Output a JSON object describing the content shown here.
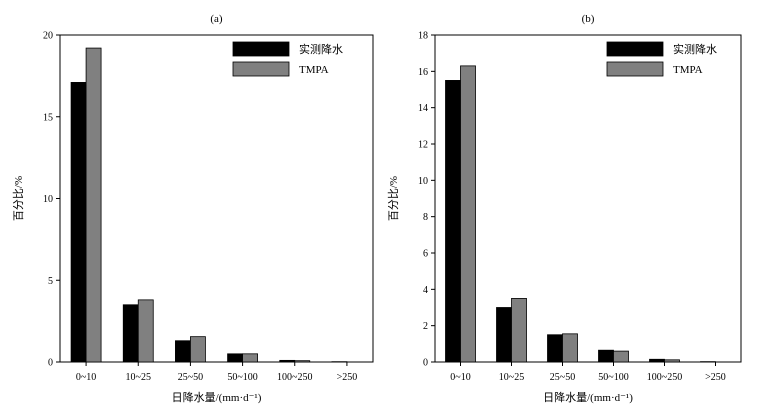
{
  "chart_data": [
    {
      "type": "bar",
      "title": "(a)",
      "xlabel": "日降水量/(mm·d⁻¹)",
      "ylabel": "百分比/%",
      "categories": [
        "0~10",
        "10~25",
        "25~50",
        "50~100",
        "100~250",
        ">250"
      ],
      "series": [
        {
          "name": "实测降水",
          "color": "#000000",
          "values": [
            17.1,
            3.5,
            1.3,
            0.5,
            0.1,
            0.02
          ]
        },
        {
          "name": "TMPA",
          "color": "#808080",
          "values": [
            19.2,
            3.8,
            1.55,
            0.5,
            0.08,
            0.0
          ]
        }
      ],
      "ylim": [
        0,
        20
      ],
      "yticks": [
        0,
        5,
        10,
        15,
        20
      ],
      "grid": false,
      "legend_position": "top-right"
    },
    {
      "type": "bar",
      "title": "(b)",
      "xlabel": "日降水量/(mm·d⁻¹)",
      "ylabel": "百分比/%",
      "categories": [
        "0~10",
        "10~25",
        "25~50",
        "50~100",
        "100~250",
        ">250"
      ],
      "series": [
        {
          "name": "实测降水",
          "color": "#000000",
          "values": [
            15.5,
            3.0,
            1.5,
            0.65,
            0.15,
            0.02
          ]
        },
        {
          "name": "TMPA",
          "color": "#808080",
          "values": [
            16.3,
            3.5,
            1.55,
            0.6,
            0.12,
            0.0
          ]
        }
      ],
      "ylim": [
        0,
        18
      ],
      "yticks": [
        0,
        2,
        4,
        6,
        8,
        10,
        12,
        14,
        16,
        18
      ],
      "grid": false,
      "legend_position": "top-right"
    }
  ]
}
